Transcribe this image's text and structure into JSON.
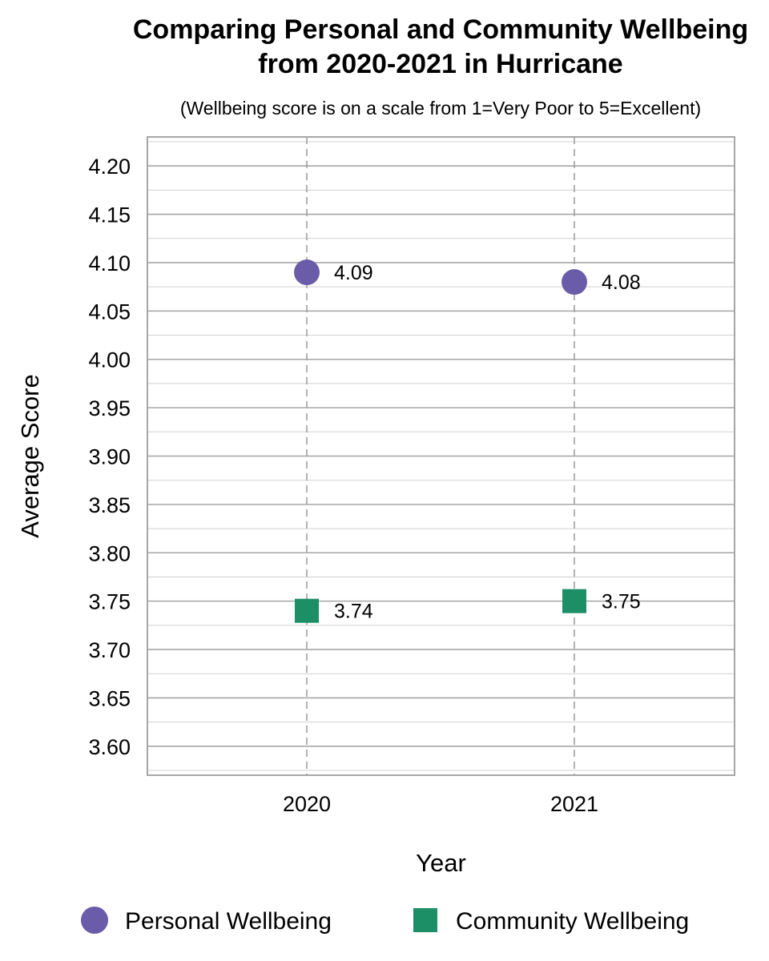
{
  "chart_data": {
    "type": "scatter",
    "title": "Comparing Personal and Community Wellbeing from 2020-2021 in Hurricane",
    "title_lines": [
      "Comparing Personal and Community Wellbeing",
      "from 2020-2021 in Hurricane"
    ],
    "subtitle": "(Wellbeing score is on a scale from 1=Very Poor to 5=Excellent)",
    "xlabel": "Year",
    "ylabel": "Average Score",
    "categories": [
      "2020",
      "2021"
    ],
    "ylim": [
      3.57,
      4.23
    ],
    "y_ticks": [
      "3.60",
      "3.65",
      "3.70",
      "3.75",
      "3.80",
      "3.85",
      "3.90",
      "3.95",
      "4.00",
      "4.05",
      "4.10",
      "4.15",
      "4.20"
    ],
    "grid": true,
    "legend_position": "bottom",
    "series": [
      {
        "name": "Personal Wellbeing",
        "marker": "circle",
        "color": "#6a5ca8",
        "values": [
          4.09,
          4.08
        ],
        "labels": [
          "4.09",
          "4.08"
        ]
      },
      {
        "name": "Community Wellbeing",
        "marker": "square",
        "color": "#1d8f67",
        "values": [
          3.74,
          3.75
        ],
        "labels": [
          "3.74",
          "3.75"
        ]
      }
    ]
  }
}
